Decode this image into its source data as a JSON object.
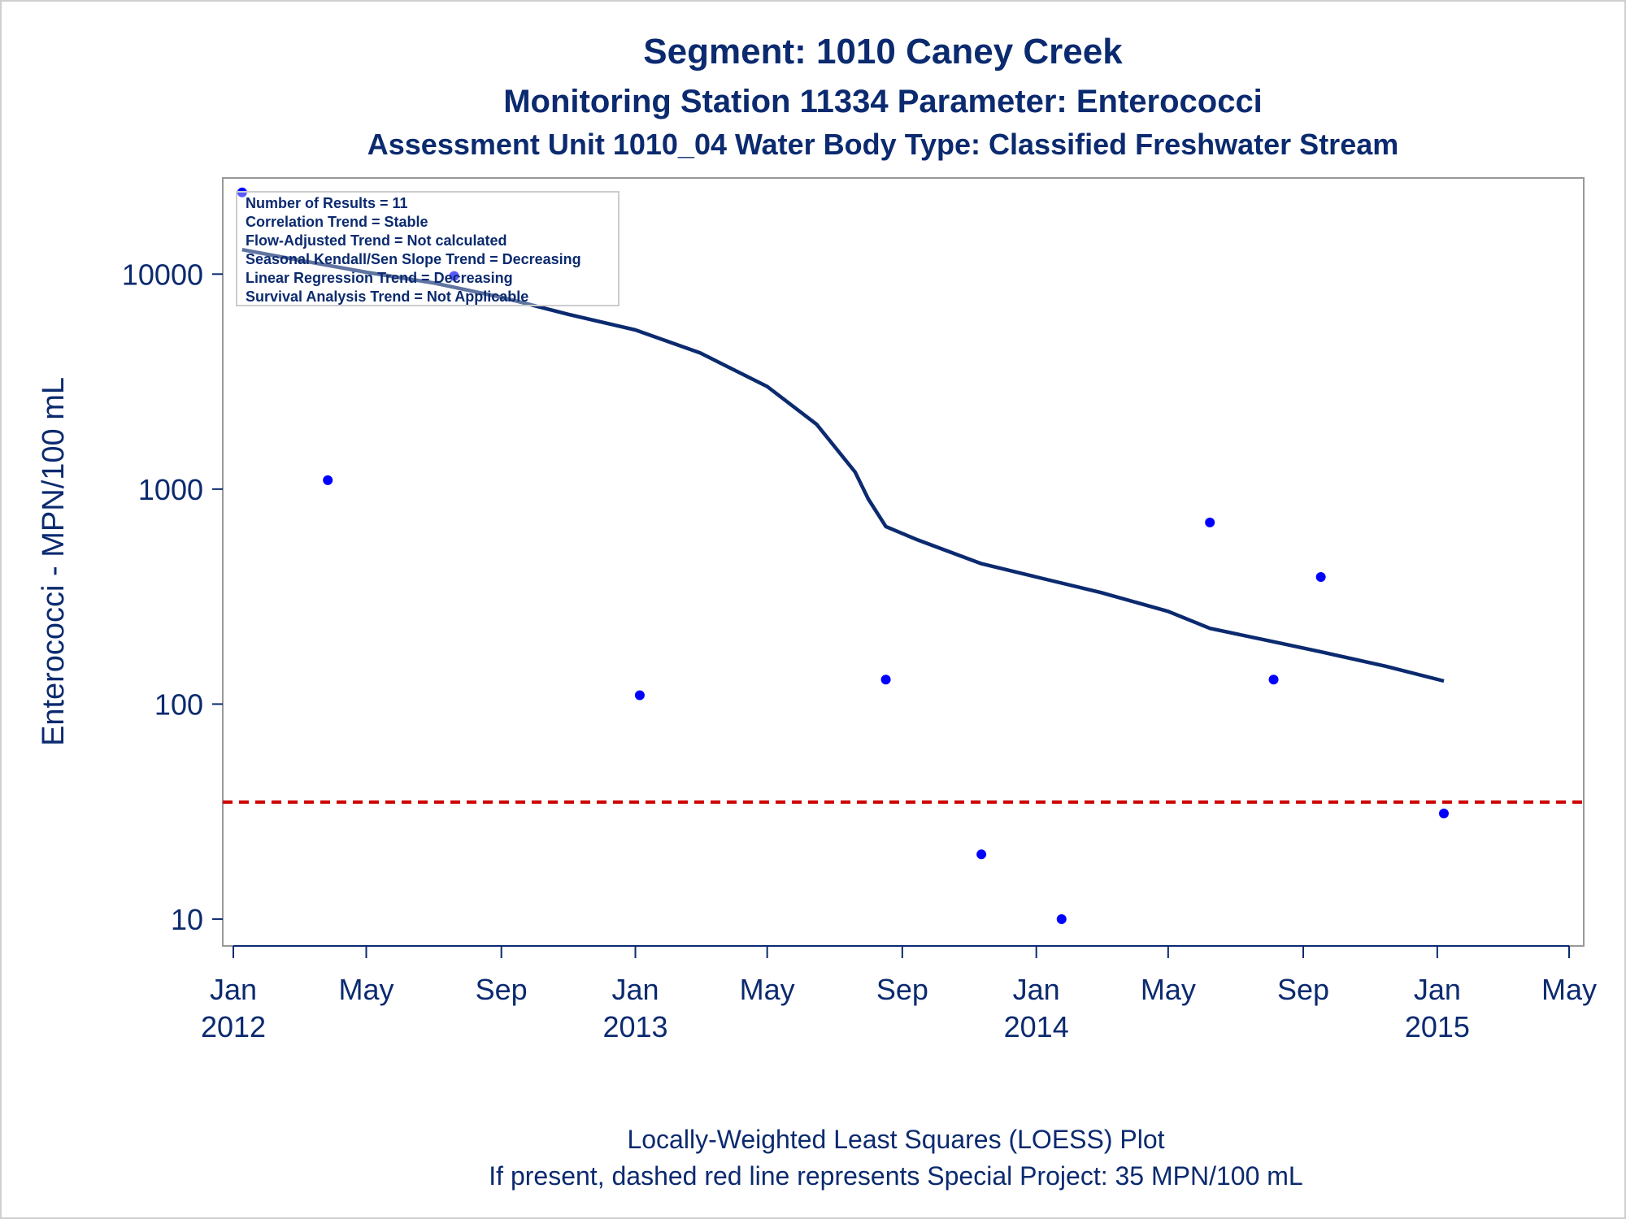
{
  "chart_data": {
    "type": "scatter",
    "titles": [
      "Segment: 1010  Caney Creek",
      "Monitoring Station 11334 Parameter: Enterococci",
      "Assessment Unit 1010_04   Water Body Type: Classified Freshwater Stream"
    ],
    "ylabel": "Enterococci - MPN/100 mL",
    "yscale": "log",
    "ylim": [
      7.5,
      28000
    ],
    "yticks": [
      {
        "value": 10,
        "label": "10"
      },
      {
        "value": 100,
        "label": "100"
      },
      {
        "value": 1000,
        "label": "1000"
      },
      {
        "value": 10000,
        "label": "10000"
      }
    ],
    "xlim": [
      "2012-01-01",
      "2015-05-01"
    ],
    "xticks": [
      {
        "date": "2012-01-01",
        "label": "Jan",
        "year": "2012"
      },
      {
        "date": "2012-05-01",
        "label": "May",
        "year": ""
      },
      {
        "date": "2012-09-01",
        "label": "Sep",
        "year": ""
      },
      {
        "date": "2013-01-01",
        "label": "Jan",
        "year": "2013"
      },
      {
        "date": "2013-05-01",
        "label": "May",
        "year": ""
      },
      {
        "date": "2013-09-01",
        "label": "Sep",
        "year": ""
      },
      {
        "date": "2014-01-01",
        "label": "Jan",
        "year": "2014"
      },
      {
        "date": "2014-05-01",
        "label": "May",
        "year": ""
      },
      {
        "date": "2014-09-01",
        "label": "Sep",
        "year": ""
      },
      {
        "date": "2015-01-01",
        "label": "Jan",
        "year": "2015"
      },
      {
        "date": "2015-05-01",
        "label": "May",
        "year": ""
      }
    ],
    "points": [
      {
        "x": "2012-01-09",
        "y": 24000
      },
      {
        "x": "2012-03-27",
        "y": 1100
      },
      {
        "x": "2012-07-20",
        "y": 9800
      },
      {
        "x": "2013-01-05",
        "y": 110
      },
      {
        "x": "2013-08-17",
        "y": 130
      },
      {
        "x": "2013-11-12",
        "y": 20
      },
      {
        "x": "2014-01-24",
        "y": 10
      },
      {
        "x": "2014-06-08",
        "y": 700
      },
      {
        "x": "2014-08-05",
        "y": 130
      },
      {
        "x": "2014-09-17",
        "y": 390
      },
      {
        "x": "2015-01-07",
        "y": 31
      }
    ],
    "loess": [
      {
        "x": "2012-01-09",
        "y": 13000
      },
      {
        "x": "2012-03-01",
        "y": 11600
      },
      {
        "x": "2012-05-01",
        "y": 10200
      },
      {
        "x": "2012-07-01",
        "y": 9100
      },
      {
        "x": "2012-09-01",
        "y": 7800
      },
      {
        "x": "2012-11-01",
        "y": 6500
      },
      {
        "x": "2013-01-01",
        "y": 5500
      },
      {
        "x": "2013-03-01",
        "y": 4300
      },
      {
        "x": "2013-05-01",
        "y": 3000
      },
      {
        "x": "2013-06-15",
        "y": 2000
      },
      {
        "x": "2013-07-20",
        "y": 1200
      },
      {
        "x": "2013-08-01",
        "y": 900
      },
      {
        "x": "2013-08-17",
        "y": 670
      },
      {
        "x": "2013-09-15",
        "y": 580
      },
      {
        "x": "2013-11-12",
        "y": 450
      },
      {
        "x": "2014-01-01",
        "y": 390
      },
      {
        "x": "2014-03-01",
        "y": 330
      },
      {
        "x": "2014-05-01",
        "y": 270
      },
      {
        "x": "2014-06-08",
        "y": 225
      },
      {
        "x": "2014-08-05",
        "y": 195
      },
      {
        "x": "2014-09-17",
        "y": 175
      },
      {
        "x": "2014-11-15",
        "y": 150
      },
      {
        "x": "2015-01-07",
        "y": 128
      }
    ],
    "reference_line": {
      "y": 35
    },
    "inset": [
      "Number of Results = 11",
      "Correlation Trend = Stable",
      "Flow-Adjusted Trend = Not calculated",
      "Seasonal Kendall/Sen Slope Trend = Decreasing",
      "Linear Regression Trend = Decreasing",
      "Survival Analysis Trend = Not Applicable"
    ],
    "footnotes": [
      "Locally-Weighted Least Squares (LOESS) Plot",
      "If present, dashed red line represents Special Project: 35 MPN/100 mL"
    ],
    "grid": false,
    "colors": {
      "text": "#0b2a6f",
      "points": "#0000ff",
      "loess": "#0b2a6f",
      "reference": "#cc0000",
      "frame": "#999999"
    }
  }
}
